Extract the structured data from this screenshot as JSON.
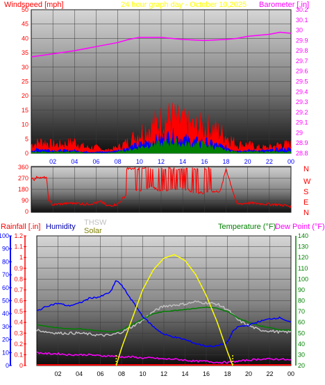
{
  "header": {
    "windspeed_label": "Windspeed [mph]",
    "title": "24 hour graph day - October 10,2025",
    "barometer_label": "Barometer [.in]"
  },
  "x_ticks": [
    "02",
    "04",
    "06",
    "08",
    "10",
    "12",
    "14",
    "16",
    "18",
    "20",
    "22",
    "00"
  ],
  "lower_header": {
    "rainfall_label": "Rainfall [.in]",
    "humidity_label": "Humidity",
    "thsw_label": "THSW",
    "solar_label": "Solar",
    "temperature_label": "Temperature (°F)",
    "dewpoint_label": "Dew Point (°F)"
  },
  "colors": {
    "background": "#ffffff",
    "wind": "#ff0000",
    "wind_avg": "#0000ff",
    "wind_low": "#008000",
    "barometer": "#ff00ff",
    "direction": "#ff0000",
    "humidity": "#0000ff",
    "thsw": "#c0c0c0",
    "solar": "#ffff00",
    "temperature": "#008000",
    "dewpoint": "#ff00ff",
    "rain": "#ff0000",
    "title": "#ffff00",
    "marker": "#ffff00"
  },
  "chart_data": [
    {
      "type": "line",
      "name": "wind_barometer",
      "y_left": {
        "label": "Windspeed [mph]",
        "range": [
          0,
          50
        ],
        "ticks": [
          "0",
          "5",
          "10",
          "15",
          "20",
          "25",
          "30",
          "35",
          "40",
          "45",
          "50"
        ]
      },
      "y_right": {
        "label": "Barometer [.in]",
        "range": [
          28.8,
          30.2
        ],
        "ticks": [
          "28.8",
          "28.9",
          "29",
          "29.1",
          "29.2",
          "29.3",
          "29.4",
          "29.5",
          "29.6",
          "29.7",
          "29.8",
          "29.9",
          "30",
          "30.1",
          "30.2"
        ]
      },
      "x_range_hours": [
        0,
        24
      ],
      "series": [
        {
          "key": "gust",
          "x": [
            0,
            1,
            2,
            3,
            4,
            5,
            6,
            7,
            8,
            9,
            10,
            11,
            12,
            13,
            14,
            15,
            16,
            17,
            18,
            19,
            20,
            21,
            22,
            23,
            24
          ],
          "y": [
            3,
            4,
            3,
            3,
            4,
            2,
            2,
            1,
            2,
            4,
            7,
            9,
            11,
            12,
            10,
            9,
            9,
            8,
            6,
            3,
            3,
            2,
            2,
            3,
            3
          ]
        },
        {
          "key": "avg",
          "x": [
            0,
            1,
            2,
            3,
            4,
            5,
            6,
            7,
            8,
            9,
            10,
            11,
            12,
            13,
            14,
            15,
            16,
            17,
            18,
            19,
            20,
            21,
            22,
            23,
            24
          ],
          "y": [
            1,
            1.5,
            1,
            1,
            1,
            0.5,
            0.5,
            0.5,
            1,
            2,
            3,
            4,
            5,
            6,
            5,
            4,
            4,
            3,
            2,
            1,
            1,
            1,
            1,
            1.5,
            1.5
          ]
        },
        {
          "key": "low",
          "x": [
            0,
            1,
            2,
            3,
            4,
            5,
            6,
            7,
            8,
            9,
            10,
            11,
            12,
            13,
            14,
            15,
            16,
            17,
            18,
            19,
            20,
            21,
            22,
            23,
            24
          ],
          "y": [
            0.5,
            0.5,
            0.5,
            0.5,
            0.5,
            0,
            0,
            0,
            0.5,
            1,
            2,
            3,
            3,
            4,
            3,
            3,
            3,
            2,
            1,
            0.5,
            0.5,
            0.5,
            0.5,
            0.5,
            0.5
          ]
        },
        {
          "key": "barometer",
          "x": [
            0,
            2,
            4,
            6,
            8,
            9,
            10,
            12,
            14,
            16,
            18,
            19,
            20,
            22,
            23,
            24
          ],
          "y": [
            29.74,
            29.77,
            29.8,
            29.84,
            29.88,
            29.91,
            29.93,
            29.93,
            29.91,
            29.9,
            29.91,
            29.92,
            29.94,
            29.96,
            29.98,
            29.97
          ]
        }
      ]
    },
    {
      "type": "line",
      "name": "wind_direction",
      "y_left": {
        "range": [
          0,
          360
        ],
        "ticks": [
          "0",
          "90",
          "180",
          "270",
          "360"
        ]
      },
      "y_right": {
        "ticks": [
          "N",
          "W",
          "S",
          "E",
          "N"
        ]
      },
      "x_range_hours": [
        0,
        24
      ],
      "series": [
        {
          "key": "direction",
          "x": [
            0,
            0.3,
            0.6,
            1,
            1.4,
            1.6,
            1.8,
            2,
            3,
            4,
            5,
            6,
            6.5,
            7,
            8,
            9,
            10,
            11,
            12,
            13,
            14,
            15,
            16,
            16.5,
            17,
            17.5,
            18,
            19,
            20,
            21,
            22,
            23,
            23.5,
            24
          ],
          "y": [
            280,
            260,
            285,
            270,
            280,
            100,
            70,
            55,
            65,
            70,
            60,
            70,
            80,
            45,
            60,
            160,
            170,
            200,
            170,
            180,
            190,
            160,
            150,
            170,
            160,
            170,
            350,
            60,
            70,
            65,
            60,
            55,
            50,
            40
          ]
        }
      ]
    },
    {
      "type": "line",
      "name": "rain_humidity_temperature",
      "y_humidity": {
        "label": "Humidity",
        "range": [
          0,
          100
        ],
        "ticks": [
          "0",
          "10",
          "20",
          "30",
          "40",
          "50",
          "60",
          "70",
          "80",
          "90",
          "100"
        ]
      },
      "y_rain": {
        "label": "Rainfall [.in]",
        "range": [
          0,
          1.2
        ],
        "ticks": [
          "0",
          "0.1",
          "0.2",
          "0.3",
          "0.4",
          "0.5",
          "0.6",
          "0.7",
          "0.8",
          "0.9",
          "1",
          "1.1",
          "1.2"
        ]
      },
      "y_temperature": {
        "label": "Temperature (°F)",
        "range": [
          20,
          140
        ],
        "ticks": [
          "20",
          "30",
          "40",
          "50",
          "60",
          "70",
          "80",
          "90",
          "100",
          "110",
          "120",
          "130",
          "140"
        ]
      },
      "x_range_hours": [
        0,
        24
      ],
      "series": [
        {
          "key": "humidity",
          "x": [
            0,
            1,
            2,
            3,
            4,
            5,
            6,
            7,
            7.5,
            8,
            9,
            10,
            11,
            12,
            13,
            14,
            15,
            16,
            17,
            18,
            18.5,
            19,
            20,
            21,
            22,
            23,
            24
          ],
          "y": [
            42,
            46,
            48,
            46,
            48,
            52,
            53,
            57,
            66,
            62,
            50,
            38,
            30,
            24,
            22,
            20,
            17,
            15,
            15,
            18,
            26,
            30,
            31,
            34,
            36,
            37,
            33
          ]
        },
        {
          "key": "temperature",
          "x": [
            0,
            1,
            2,
            3,
            4,
            5,
            6,
            7,
            8,
            9,
            10,
            11,
            12,
            13,
            14,
            15,
            16,
            17,
            18,
            19,
            20,
            21,
            22,
            23,
            24
          ],
          "y": [
            58,
            56,
            55,
            54,
            54,
            53,
            52,
            51,
            53,
            58,
            63,
            68,
            70,
            71,
            72,
            73,
            74,
            73,
            70,
            64,
            60,
            57,
            55,
            53,
            53
          ]
        },
        {
          "key": "dewpoint",
          "x": [
            0,
            1,
            2,
            3,
            4,
            5,
            6,
            7,
            8,
            9,
            10,
            11,
            12,
            13,
            14,
            15,
            16,
            17,
            18,
            19,
            20,
            21,
            22,
            23,
            24
          ],
          "y": [
            32,
            31,
            31,
            30,
            30,
            30,
            29,
            29,
            28,
            28,
            27,
            27,
            26,
            26,
            25,
            24,
            24,
            23,
            23,
            24,
            25,
            26,
            26,
            26,
            25
          ]
        },
        {
          "key": "thsw",
          "x": [
            0,
            1,
            2,
            3,
            4,
            5,
            6,
            7,
            8,
            9,
            10,
            11,
            12,
            13,
            14,
            15,
            16,
            17,
            18,
            19,
            20,
            21,
            22,
            23,
            24
          ],
          "y": [
            53,
            51,
            50,
            50,
            50,
            49,
            48,
            48,
            51,
            56,
            62,
            70,
            75,
            76,
            77,
            79,
            78,
            77,
            72,
            62,
            57,
            53,
            52,
            51,
            51
          ]
        },
        {
          "key": "solar",
          "x": [
            7.5,
            8,
            9,
            10,
            11,
            12,
            13,
            14,
            15,
            16,
            17,
            18,
            18.5
          ],
          "y": [
            0,
            15,
            40,
            65,
            82,
            92,
            95,
            90,
            78,
            60,
            38,
            12,
            0
          ]
        },
        {
          "key": "rain",
          "x": [
            0,
            24
          ],
          "y": [
            0,
            0
          ]
        }
      ]
    }
  ]
}
